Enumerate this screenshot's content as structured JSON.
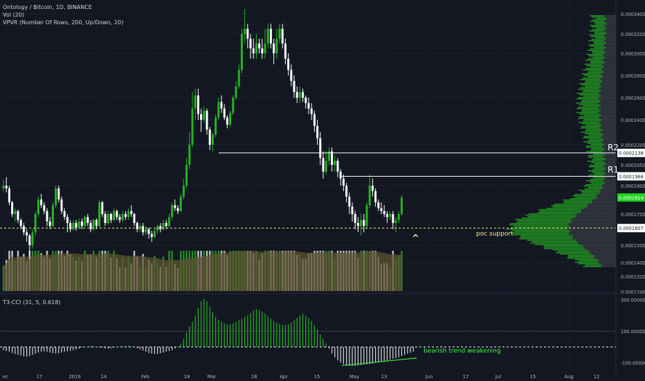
{
  "legend": {
    "title": "Ontology / Bitcoin, 1D, BINANCE",
    "vol": "Vol (20)",
    "vpvr": "VPVR (Number Of Rows, 200, Up/Down, 20)",
    "t3cci": "T3-CCI (31, 5, 0.618)"
  },
  "colors": {
    "background": "#131722",
    "up": "#26b521",
    "down": "#ffffff",
    "poc_line": "#f5e98a",
    "level_line": "#ffffff",
    "current_price_badge": "#1fd21f",
    "annotation_green": "#3ff33f",
    "annotation_yellow": "#f5e98a",
    "vol_shade": "#5d5431",
    "vpvr_gray": "#4a4d57"
  },
  "annotations": {
    "r2": "R2",
    "r1": "R1",
    "poc_support": "poc support",
    "bearish": "bearish trend weakening",
    "caret": "^"
  },
  "chart_data": [
    {
      "type": "candlestick",
      "title": "Ontology / Bitcoin, 1D, BINANCE",
      "x_ticks": [
        "ec",
        "17",
        "2019",
        "14",
        "Feb",
        "18",
        "Mar",
        "18",
        "Apr",
        "15",
        "May",
        "13",
        "Jun",
        "17",
        "Jul",
        "15",
        "Aug",
        "12"
      ],
      "y_ticks": [
        "0.0003400",
        "0.0003200",
        "0.0003000",
        "0.0002800",
        "0.0002600",
        "0.0002400",
        "0.0002200",
        "0.0002050",
        "0.0001900",
        "0.0001700",
        "0.0001500",
        "0.0001400",
        "0.0001320",
        "0.0001240"
      ],
      "ylim": [
        0.000124,
        0.00035
      ],
      "y_scale": "log",
      "levels": [
        {
          "label": "R2",
          "value": 0.0002138,
          "badge": "0.0002138"
        },
        {
          "label": "R1",
          "value": 0.0001966,
          "badge": "0.0001966"
        },
        {
          "label": "poc support",
          "value": 0.0001607,
          "badge": "0.0001607",
          "style": "dashed"
        }
      ],
      "current_price": {
        "value": 0.0001814,
        "badge": "0.0001814"
      },
      "candles": [
        [
          0.000188,
          0.00019,
          0.000186,
          0.000194
        ],
        [
          0.00019,
          0.000188,
          0.000185,
          0.000196
        ],
        [
          0.000188,
          0.000178,
          0.000176,
          0.00019
        ],
        [
          0.000178,
          0.00017,
          0.000168,
          0.000179
        ],
        [
          0.00017,
          0.000172,
          0.000165,
          0.000174
        ],
        [
          0.000172,
          0.000166,
          0.000164,
          0.000173
        ],
        [
          0.000166,
          0.000162,
          0.00016,
          0.000167
        ],
        [
          0.000162,
          0.000158,
          0.000156,
          0.000164
        ],
        [
          0.000158,
          0.000156,
          0.000152,
          0.00016
        ],
        [
          0.000156,
          0.00015,
          0.000142,
          0.000157
        ],
        [
          0.00015,
          0.000158,
          0.000148,
          0.00016
        ],
        [
          0.000158,
          0.00017,
          0.000156,
          0.000172
        ],
        [
          0.00017,
          0.00018,
          0.000168,
          0.000182
        ],
        [
          0.00018,
          0.000176,
          0.000174,
          0.000184
        ],
        [
          0.000176,
          0.000172,
          0.00017,
          0.000178
        ],
        [
          0.000172,
          0.000165,
          0.000162,
          0.000174
        ],
        [
          0.000165,
          0.000162,
          0.00016,
          0.000168
        ],
        [
          0.000162,
          0.000176,
          0.000161,
          0.000178
        ],
        [
          0.000176,
          0.000188,
          0.000174,
          0.00019
        ],
        [
          0.000188,
          0.00018,
          0.000178,
          0.00019
        ],
        [
          0.00018,
          0.000172,
          0.00017,
          0.000182
        ],
        [
          0.000172,
          0.000168,
          0.000166,
          0.000174
        ],
        [
          0.000168,
          0.000164,
          0.000158,
          0.00017
        ],
        [
          0.000164,
          0.00016,
          0.000158,
          0.000166
        ],
        [
          0.00016,
          0.000164,
          0.000159,
          0.000166
        ],
        [
          0.000164,
          0.000161,
          0.000159,
          0.000166
        ],
        [
          0.000161,
          0.000165,
          0.00016,
          0.000167
        ],
        [
          0.000165,
          0.000162,
          0.00016,
          0.000167
        ],
        [
          0.000162,
          0.000168,
          0.000161,
          0.000169
        ],
        [
          0.000168,
          0.000164,
          0.000162,
          0.00017
        ],
        [
          0.000164,
          0.00016,
          0.000158,
          0.000166
        ],
        [
          0.00016,
          0.000166,
          0.000159,
          0.000167
        ],
        [
          0.000166,
          0.000162,
          0.00016,
          0.000167
        ],
        [
          0.000162,
          0.000178,
          0.000161,
          0.00018
        ],
        [
          0.000178,
          0.00017,
          0.000168,
          0.000179
        ],
        [
          0.00017,
          0.000164,
          0.000162,
          0.000172
        ],
        [
          0.000164,
          0.00017,
          0.000163,
          0.000172
        ],
        [
          0.00017,
          0.000166,
          0.000164,
          0.000171
        ],
        [
          0.000166,
          0.000172,
          0.000165,
          0.000174
        ],
        [
          0.000172,
          0.000168,
          0.000166,
          0.000173
        ],
        [
          0.000168,
          0.000166,
          0.000164,
          0.00017
        ],
        [
          0.000166,
          0.00017,
          0.000165,
          0.000172
        ],
        [
          0.00017,
          0.000168,
          0.000166,
          0.000172
        ],
        [
          0.000168,
          0.000172,
          0.000166,
          0.000174
        ],
        [
          0.000172,
          0.00017,
          0.000168,
          0.000176
        ],
        [
          0.00017,
          0.000164,
          0.000162,
          0.000171
        ],
        [
          0.000164,
          0.00016,
          0.000158,
          0.000165
        ],
        [
          0.00016,
          0.000162,
          0.000158,
          0.000164
        ],
        [
          0.000162,
          0.000158,
          0.000156,
          0.000164
        ],
        [
          0.000158,
          0.00016,
          0.000156,
          0.000162
        ],
        [
          0.00016,
          0.000157,
          0.000154,
          0.000161
        ],
        [
          0.000157,
          0.000155,
          0.000152,
          0.000159
        ],
        [
          0.000155,
          0.000159,
          0.000154,
          0.000161
        ],
        [
          0.000159,
          0.000162,
          0.000157,
          0.000163
        ],
        [
          0.000162,
          0.00016,
          0.000158,
          0.000164
        ],
        [
          0.00016,
          0.000164,
          0.000159,
          0.000166
        ],
        [
          0.000164,
          0.000162,
          0.00016,
          0.000166
        ],
        [
          0.000162,
          0.000168,
          0.000161,
          0.00017
        ],
        [
          0.000168,
          0.000176,
          0.000166,
          0.000178
        ],
        [
          0.000176,
          0.000174,
          0.000172,
          0.00018
        ],
        [
          0.000174,
          0.000172,
          0.00017,
          0.000176
        ],
        [
          0.000172,
          0.000182,
          0.000171,
          0.000184
        ],
        [
          0.000182,
          0.00019,
          0.00018,
          0.000195
        ],
        [
          0.00019,
          0.000205,
          0.000188,
          0.00021
        ],
        [
          0.000205,
          0.00022,
          0.000202,
          0.00023
        ],
        [
          0.00022,
          0.00025,
          0.000218,
          0.000265
        ],
        [
          0.00025,
          0.000262,
          0.00024,
          0.000268
        ],
        [
          0.000262,
          0.000245,
          0.00024,
          0.000268
        ],
        [
          0.000245,
          0.00024,
          0.00023,
          0.00025
        ],
        [
          0.00024,
          0.000248,
          0.000238,
          0.000252
        ],
        [
          0.000248,
          0.000232,
          0.000228,
          0.00025
        ],
        [
          0.000232,
          0.00022,
          0.000216,
          0.000234
        ],
        [
          0.00022,
          0.000228,
          0.000215,
          0.00023
        ],
        [
          0.000228,
          0.000242,
          0.000226,
          0.000245
        ],
        [
          0.000242,
          0.000256,
          0.00024,
          0.00026
        ],
        [
          0.000256,
          0.00025,
          0.000246,
          0.000262
        ],
        [
          0.00025,
          0.000242,
          0.00024,
          0.000254
        ],
        [
          0.000242,
          0.000236,
          0.000233,
          0.000244
        ],
        [
          0.000236,
          0.000246,
          0.000234,
          0.000248
        ],
        [
          0.000246,
          0.00026,
          0.000244,
          0.000262
        ],
        [
          0.00026,
          0.00027,
          0.000258,
          0.000275
        ],
        [
          0.00027,
          0.000285,
          0.000268,
          0.00029
        ],
        [
          0.000285,
          0.00032,
          0.000282,
          0.000325
        ],
        [
          0.00032,
          0.000325,
          0.00031,
          0.000345
        ],
        [
          0.000325,
          0.000315,
          0.000305,
          0.00033
        ],
        [
          0.000315,
          0.000305,
          0.000295,
          0.00032
        ],
        [
          0.000305,
          0.0003,
          0.000295,
          0.000315
        ],
        [
          0.0003,
          0.00031,
          0.000295,
          0.00032
        ],
        [
          0.00031,
          0.000305,
          0.0003,
          0.000315
        ],
        [
          0.000305,
          0.0003,
          0.000295,
          0.000315
        ],
        [
          0.0003,
          0.00031,
          0.000295,
          0.000325
        ],
        [
          0.00031,
          0.000325,
          0.000305,
          0.00033
        ],
        [
          0.000325,
          0.00031,
          0.000305,
          0.00033
        ],
        [
          0.00031,
          0.0003,
          0.00029,
          0.000315
        ],
        [
          0.0003,
          0.000315,
          0.000295,
          0.000325
        ],
        [
          0.000315,
          0.000325,
          0.00031,
          0.00033
        ],
        [
          0.000325,
          0.00031,
          0.000305,
          0.00033
        ],
        [
          0.00031,
          0.000295,
          0.00029,
          0.000315
        ],
        [
          0.000295,
          0.000285,
          0.00028,
          0.0003
        ],
        [
          0.000285,
          0.000275,
          0.00027,
          0.00029
        ],
        [
          0.000275,
          0.000265,
          0.00026,
          0.00028
        ],
        [
          0.000265,
          0.00026,
          0.000255,
          0.00027
        ],
        [
          0.00026,
          0.000265,
          0.000255,
          0.00027
        ],
        [
          0.000265,
          0.00026,
          0.000256,
          0.000268
        ],
        [
          0.00026,
          0.000255,
          0.00025,
          0.000262
        ],
        [
          0.000255,
          0.00025,
          0.000245,
          0.00026
        ],
        [
          0.00025,
          0.000245,
          0.00024,
          0.000255
        ],
        [
          0.000245,
          0.000235,
          0.00023,
          0.000248
        ],
        [
          0.000235,
          0.000225,
          0.00022,
          0.00024
        ],
        [
          0.000225,
          0.00021,
          0.000205,
          0.00023
        ],
        [
          0.00021,
          0.0002,
          0.000195,
          0.000215
        ],
        [
          0.0002,
          0.000208,
          0.000198,
          0.000215
        ],
        [
          0.000208,
          0.000215,
          0.000205,
          0.000218
        ],
        [
          0.000215,
          0.000205,
          0.0002,
          0.000218
        ],
        [
          0.000205,
          0.000208,
          0.0002,
          0.000212
        ],
        [
          0.000208,
          0.0002,
          0.000196,
          0.00021
        ],
        [
          0.0002,
          0.000195,
          0.00019,
          0.000202
        ],
        [
          0.000195,
          0.00019,
          0.000186,
          0.000198
        ],
        [
          0.00019,
          0.000182,
          0.000178,
          0.000192
        ],
        [
          0.000182,
          0.000175,
          0.00017,
          0.000185
        ],
        [
          0.000175,
          0.00017,
          0.000165,
          0.000178
        ],
        [
          0.00017,
          0.000164,
          0.00016,
          0.000172
        ],
        [
          0.000164,
          0.000162,
          0.000158,
          0.000168
        ],
        [
          0.000162,
          0.000166,
          0.000156,
          0.00017
        ],
        [
          0.000166,
          0.000162,
          0.000158,
          0.00017
        ],
        [
          0.000162,
          0.000176,
          0.00016,
          0.000178
        ],
        [
          0.000176,
          0.00019,
          0.000174,
          0.000198
        ],
        [
          0.00019,
          0.000186,
          0.000182,
          0.000195
        ],
        [
          0.000186,
          0.000178,
          0.000175,
          0.000188
        ],
        [
          0.000178,
          0.000174,
          0.000172,
          0.00018
        ],
        [
          0.000174,
          0.000172,
          0.00017,
          0.000178
        ],
        [
          0.000172,
          0.00017,
          0.000168,
          0.000176
        ],
        [
          0.00017,
          0.000168,
          0.000164,
          0.000172
        ],
        [
          0.000168,
          0.00017,
          0.000166,
          0.000172
        ],
        [
          0.00017,
          0.000164,
          0.00016,
          0.000172
        ],
        [
          0.000164,
          0.000166,
          0.000158,
          0.000168
        ],
        [
          0.000166,
          0.00017,
          0.000164,
          0.000172
        ],
        [
          0.00017,
          0.0001814,
          0.000169,
          0.000183
        ]
      ]
    },
    {
      "type": "bar",
      "title": "Vol (20)",
      "note": "volume bars, colored by candle direction, with shaded moving average"
    },
    {
      "type": "bar",
      "title": "VPVR (Number Of Rows, 200, Up/Down, 20)",
      "note": "horizontal volume profile on the right; point of control near poc support"
    },
    {
      "type": "bar",
      "title": "T3-CCI (31, 5, 0.618)",
      "y_ticks": [
        "300.000000",
        "100.000000",
        "-100.000000"
      ],
      "ylim": [
        -150,
        320
      ],
      "values": [
        -20,
        -25,
        -30,
        -38,
        -45,
        -50,
        -55,
        -60,
        -62,
        -58,
        -50,
        -42,
        -35,
        -30,
        -28,
        -30,
        -35,
        -40,
        -42,
        -40,
        -35,
        -30,
        -28,
        -25,
        -20,
        -15,
        -10,
        -5,
        0,
        5,
        8,
        6,
        2,
        -2,
        -5,
        -8,
        -10,
        -8,
        -5,
        0,
        3,
        8,
        10,
        8,
        4,
        0,
        -8,
        -15,
        -22,
        -30,
        -38,
        -42,
        -45,
        -44,
        -40,
        -35,
        -30,
        -25,
        -20,
        -10,
        0,
        20,
        50,
        90,
        130,
        160,
        200,
        250,
        290,
        305,
        290,
        255,
        220,
        190,
        170,
        160,
        150,
        145,
        145,
        150,
        160,
        170,
        180,
        190,
        200,
        215,
        230,
        240,
        235,
        225,
        210,
        195,
        180,
        165,
        155,
        145,
        140,
        140,
        145,
        155,
        170,
        185,
        200,
        210,
        200,
        185,
        165,
        140,
        110,
        80,
        50,
        20,
        -10,
        -40,
        -65,
        -85,
        -100,
        -110,
        -118,
        -120,
        -122,
        -120,
        -118,
        -115,
        -112,
        -110,
        -108,
        -105,
        -100,
        -96,
        -92,
        -88,
        -85,
        -80,
        -75,
        -70,
        -65,
        -58,
        -50,
        -42,
        -36,
        -30
      ]
    }
  ]
}
